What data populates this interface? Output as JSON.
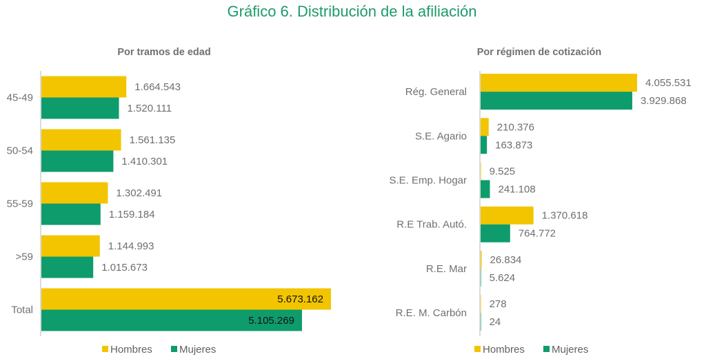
{
  "title": "Gráfico 6. Distribución de la afiliación",
  "colors": {
    "hombres": "#f2c500",
    "mujeres": "#0e9c6c"
  },
  "chart_data": [
    {
      "type": "bar",
      "orientation": "horizontal",
      "title": "Por tramos de edad",
      "categories": [
        "45-49",
        "50-54",
        "55-59",
        ">59",
        "Total"
      ],
      "series": [
        {
          "name": "Hombres",
          "values": [
            1664543,
            1561135,
            1302491,
            1144993,
            5673162
          ],
          "labels": [
            "1.664.543",
            "1.561.135",
            "1.302.491",
            "1.144.993",
            "5.673.162"
          ]
        },
        {
          "name": "Mujeres",
          "values": [
            1520111,
            1410301,
            1159184,
            1015673,
            5105269
          ],
          "labels": [
            "1.520.111",
            "1.410.301",
            "1.159.184",
            "1.015.673",
            "5.105.269"
          ]
        }
      ],
      "legend": "bottom",
      "grid": false
    },
    {
      "type": "bar",
      "orientation": "horizontal",
      "title": "Por régimen de cotización",
      "categories": [
        "Rég. General",
        "S.E. Agario",
        "S.E. Emp. Hogar",
        "R.E Trab. Autó.",
        "R.E. Mar",
        "R.E. M. Carbón"
      ],
      "series": [
        {
          "name": "Hombres",
          "values": [
            4055531,
            210376,
            9525,
            1370618,
            26834,
            278
          ],
          "labels": [
            "4.055.531",
            "210.376",
            "9.525",
            "1.370.618",
            "26.834",
            "278"
          ]
        },
        {
          "name": "Mujeres",
          "values": [
            3929868,
            163873,
            241108,
            764772,
            5624,
            24
          ],
          "labels": [
            "3.929.868",
            "163.873",
            "241.108",
            "764.772",
            "5.624",
            "24"
          ]
        }
      ],
      "legend": "bottom",
      "grid": false
    }
  ]
}
